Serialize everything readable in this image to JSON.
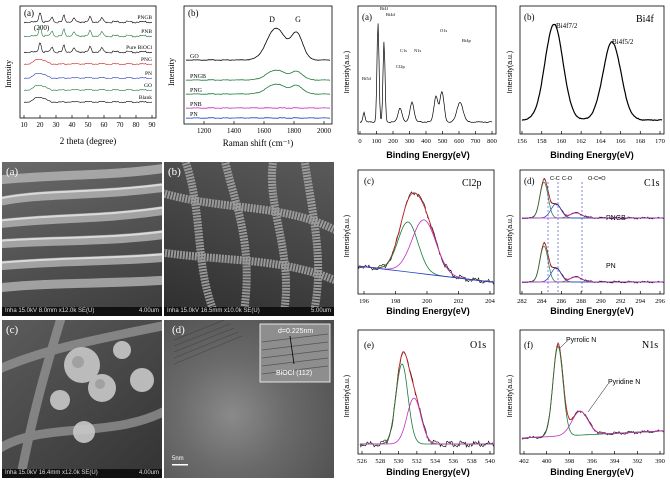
{
  "xrd": {
    "label": "(a)",
    "peak_label": "(200)",
    "ylabel": "Intensity",
    "xlabel": "2 theta (degree)",
    "xticks": [
      "10",
      "20",
      "30",
      "40",
      "50",
      "60",
      "70",
      "80",
      "90"
    ],
    "series": [
      "PNGB",
      "PNB",
      "Pure BiOCl",
      "PNG",
      "PN",
      "GO",
      "Blank"
    ]
  },
  "raman": {
    "label": "(b)",
    "ylabel": "Intensity",
    "xlabel": "Raman shift (cm⁻¹)",
    "xticks": [
      "1200",
      "1400",
      "1600",
      "1800",
      "2000"
    ],
    "peaks": [
      "D",
      "G"
    ],
    "series": [
      "GO",
      "PNGB",
      "PNG",
      "PNB",
      "PN"
    ]
  },
  "xps_survey": {
    "label": "(a)",
    "ylabel": "Intensity(a.u.)",
    "xlabel": "Binding Energy(eV)",
    "xticks": [
      "0",
      "100",
      "200",
      "300",
      "400",
      "500",
      "600",
      "700",
      "800"
    ],
    "peaks": [
      "Bi4f",
      "Bi4d",
      "C1s",
      "O1s",
      "Bi4p",
      "N1s",
      "Cl2p",
      "Bi5d"
    ]
  },
  "xps_bi": {
    "label": "(b)",
    "title": "Bi4f",
    "ylabel": "Intensity(a.u.)",
    "xlabel": "Binding Energy(eV)",
    "xticks": [
      "156",
      "158",
      "160",
      "162",
      "164",
      "166",
      "168",
      "170"
    ],
    "peaks": [
      "Bi4f7/2",
      "Bi4f5/2"
    ]
  },
  "xps_cl": {
    "label": "(c)",
    "title": "Cl2p",
    "ylabel": "Intensity(a.u.)",
    "xlabel": "Binding Energy(eV)",
    "xticks": [
      "196",
      "198",
      "200",
      "202",
      "204"
    ]
  },
  "xps_c": {
    "label": "(d)",
    "title": "C1s",
    "ylabel": "Intensity(a.u.)",
    "xlabel": "Binding Energy(eV)",
    "xticks": [
      "282",
      "284",
      "286",
      "288",
      "290",
      "292",
      "294",
      "296"
    ],
    "bonds": [
      "C-C",
      "C-O",
      "O-C=O"
    ],
    "series": [
      "PNGB",
      "PN"
    ]
  },
  "xps_o": {
    "label": "(e)",
    "title": "O1s",
    "ylabel": "Intensity(a.u.)",
    "xlabel": "Binding Energy(eV)",
    "xticks": [
      "526",
      "528",
      "530",
      "532",
      "534",
      "536",
      "538",
      "540"
    ]
  },
  "xps_n": {
    "label": "(f)",
    "title": "N1s",
    "ylabel": "Intensity(a.u.)",
    "xlabel": "Binding Energy(eV)",
    "xticks": [
      "402",
      "400",
      "398",
      "396",
      "394",
      "392",
      "390"
    ],
    "components": [
      "Pyrrolic N",
      "Pyridine N"
    ]
  },
  "sem": {
    "a": {
      "label": "(a)",
      "info": "Inha 15.0kV 8.0mm x12.0k SE(U)",
      "scale": "4.00um"
    },
    "b": {
      "label": "(b)",
      "info": "Inha 15.0kV 16.5mm x10.0k SE(U)",
      "scale": "5.00um"
    },
    "c": {
      "label": "(c)",
      "info": "Inha 15.0kV 16.4mm x12.0k SE(U)",
      "scale": "4.00um"
    },
    "d": {
      "label": "(d)",
      "d_spacing": "d=0.225nm",
      "plane": "BiOCl (112)",
      "scale": "5nm"
    }
  },
  "colors": {
    "black": "#000000",
    "red": "#d02020",
    "green": "#1a7a3a",
    "magenta": "#c030c0",
    "blue": "#2040c0",
    "purple": "#6040a0"
  }
}
